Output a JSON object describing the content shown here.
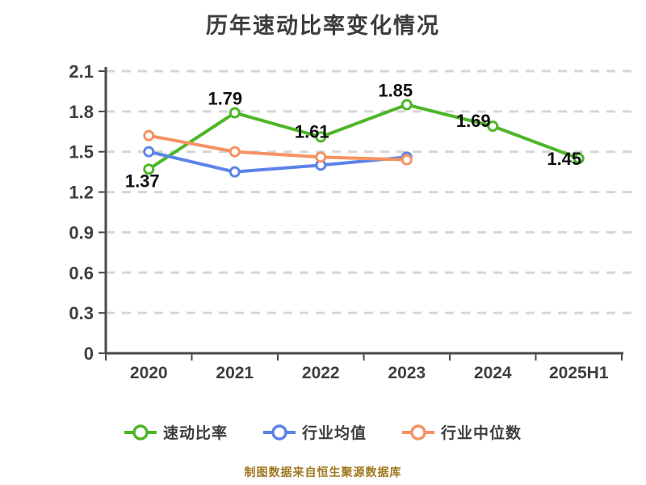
{
  "title": "历年速动比率变化情况",
  "footer": "制图数据来自恒生聚源数据库",
  "colors": {
    "background": "#ffffff",
    "title_text": "#3d3d3d",
    "axis_line": "#4a4a4a",
    "grid_line": "#d6d6d6",
    "tick_label": "#3f3f3f",
    "data_label": "#111111",
    "footer_text": "#a07820",
    "marker_fill": "#ffffff"
  },
  "chart_data": {
    "type": "line",
    "title": "历年速动比率变化情况",
    "categories": [
      "2020",
      "2021",
      "2022",
      "2023",
      "2024",
      "2025H1"
    ],
    "xlabel": "",
    "ylabel": "",
    "ylim": [
      0,
      2.1
    ],
    "y_ticks": [
      0,
      0.3,
      0.6,
      0.9,
      1.2,
      1.5,
      1.8,
      2.1
    ],
    "y_tick_labels": [
      "0",
      "0.3",
      "0.6",
      "0.9",
      "1.2",
      "1.5",
      "1.8",
      "2.1"
    ],
    "grid": "horizontal-dashed",
    "legend_position": "bottom",
    "series": [
      {
        "name": "速动比率",
        "key": "quick-ratio",
        "color": "#4fb628",
        "values": [
          1.37,
          1.79,
          1.61,
          1.85,
          1.69,
          1.45
        ],
        "data_labels": [
          "1.37",
          "1.79",
          "1.61",
          "1.85",
          "1.69",
          "1.45"
        ]
      },
      {
        "name": "行业均值",
        "key": "industry-average",
        "color": "#5c84e8",
        "values": [
          1.5,
          1.35,
          1.4,
          1.46,
          null,
          null
        ],
        "data_labels": null
      },
      {
        "name": "行业中位数",
        "key": "industry-median",
        "color": "#f59363",
        "values": [
          1.62,
          1.5,
          1.46,
          1.44,
          null,
          null
        ],
        "data_labels": null
      }
    ]
  }
}
